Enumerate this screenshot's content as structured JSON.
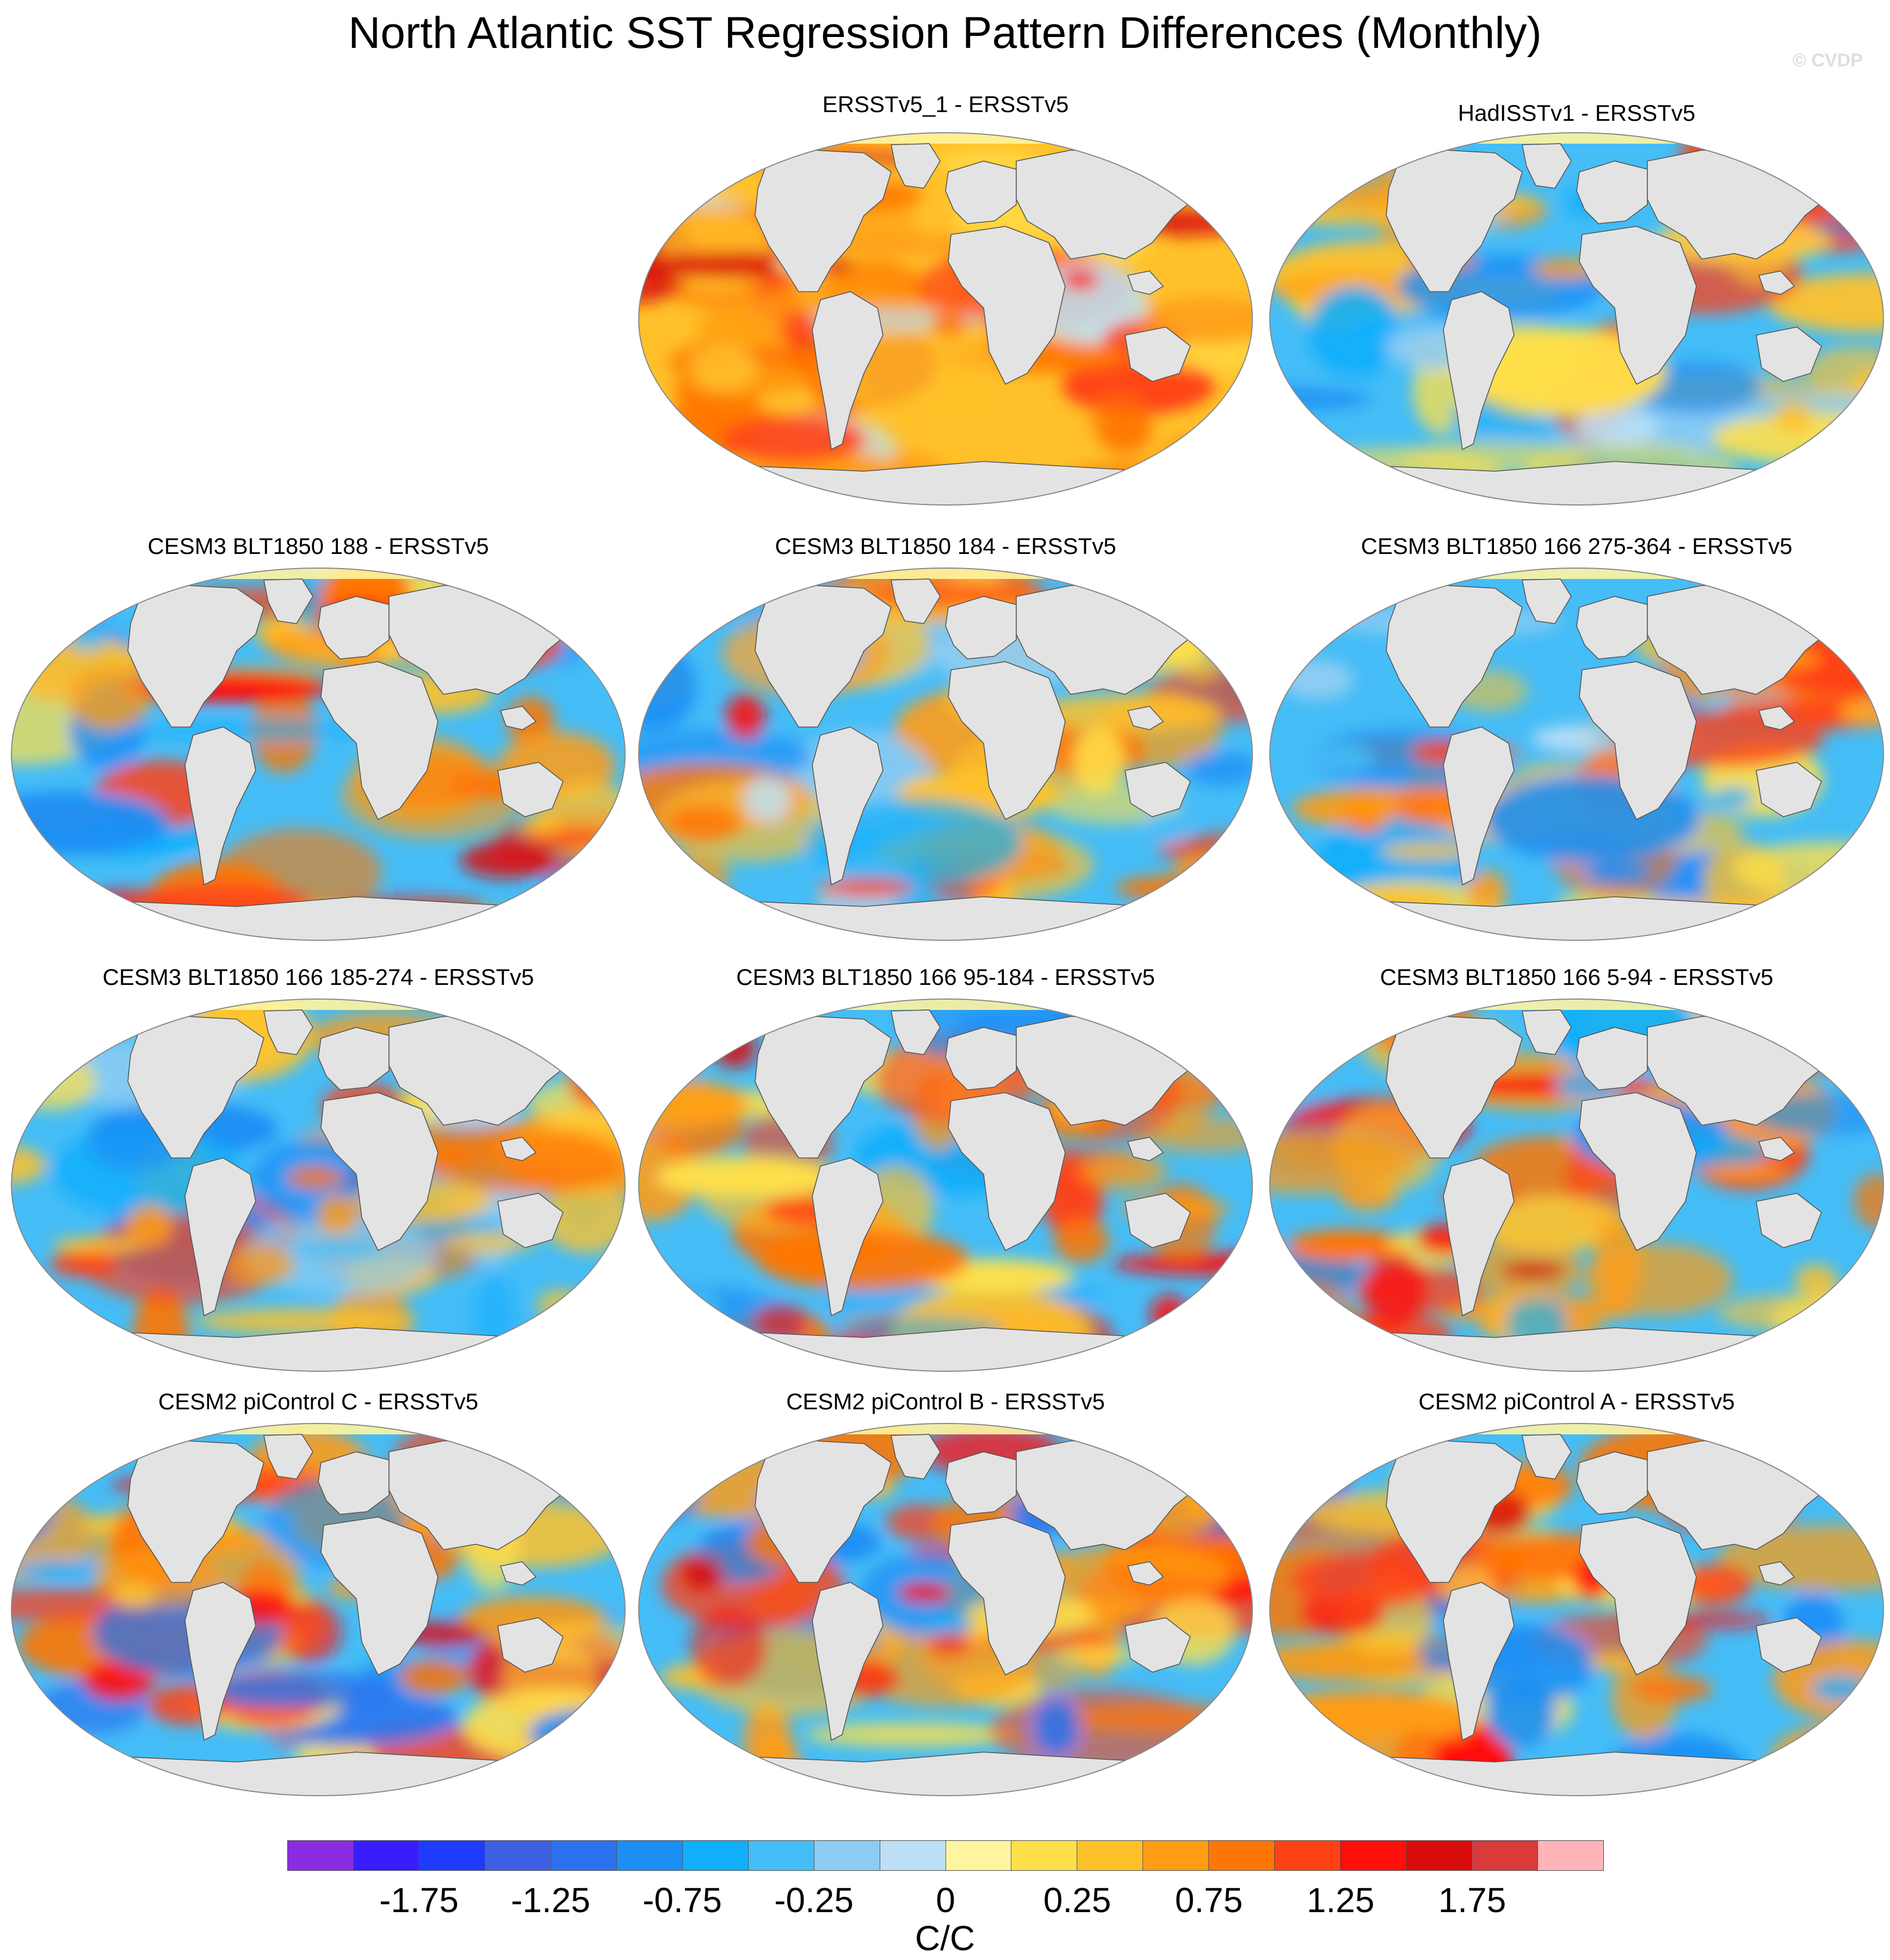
{
  "figure": {
    "title": "North Atlantic SST Regression Pattern Differences (Monthly)",
    "copyright": "© CVDP"
  },
  "panels": [
    {
      "id": "p1",
      "title": "ERSSTv5_1 - ERSSTv5",
      "pattern": "warm"
    },
    {
      "id": "p2",
      "title": "HadISSTv1 - ERSSTv5",
      "pattern": "mixed_cool"
    },
    {
      "id": "p3",
      "title": "CESM3 BLT1850 188 - ERSSTv5",
      "pattern": "cool_natl_warm"
    },
    {
      "id": "p4",
      "title": "CESM3 BLT1850 184 - ERSSTv5",
      "pattern": "mixed"
    },
    {
      "id": "p5",
      "title": "CESM3 BLT1850 166 275-364 - ERSSTv5",
      "pattern": "cool_south_warm"
    },
    {
      "id": "p6",
      "title": "CESM3 BLT1850 166 185-274 - ERSSTv5",
      "pattern": "cool_south_warm"
    },
    {
      "id": "p7",
      "title": "CESM3 BLT1850 166 95-184 - ERSSTv5",
      "pattern": "cool_natl_warm"
    },
    {
      "id": "p8",
      "title": "CESM3 BLT1850 166 5-94 - ERSSTv5",
      "pattern": "cool_natl_warm"
    },
    {
      "id": "p9",
      "title": "CESM2 piControl C - ERSSTv5",
      "pattern": "enso_warm"
    },
    {
      "id": "p10",
      "title": "CESM2 piControl B - ERSSTv5",
      "pattern": "enso_warm"
    },
    {
      "id": "p11",
      "title": "CESM2 piControl A - ERSSTv5",
      "pattern": "enso_warm"
    }
  ],
  "colorbar": {
    "units": "C/C",
    "tick_labels": [
      "-1.75",
      "-1.25",
      "-0.75",
      "-0.25",
      "0",
      "0.25",
      "0.75",
      "1.25",
      "1.75"
    ],
    "colors": [
      "#8a2be2",
      "#3a1dff",
      "#1e3cff",
      "#3f5fe3",
      "#2b73ee",
      "#1b8ff5",
      "#10aefb",
      "#45bdf7",
      "#8fccf2",
      "#bde0f7",
      "#fff5a0",
      "#ffe04a",
      "#ffc12a",
      "#ff9c14",
      "#ff7606",
      "#ff4216",
      "#ff0e0a",
      "#d90c0c",
      "#d93a3a",
      "#ffb4b8"
    ],
    "colors_semantic": "20 contour bins from about -2.0 to 2.0 C/C"
  }
}
